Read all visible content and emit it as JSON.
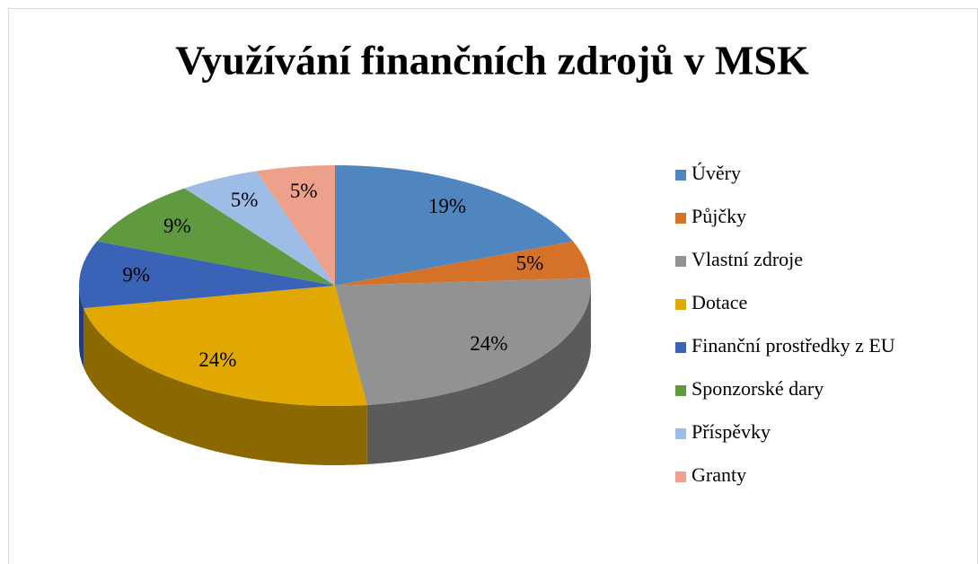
{
  "chart_data": {
    "type": "pie",
    "title": "Využívání finančních zdrojů v MSK",
    "categories": [
      "Úvěry",
      "Půjčky",
      "Vlastní zdroje",
      "Dotace",
      "Finanční prostředky z EU",
      "Sponzorské dary",
      "Příspěvky",
      "Granty"
    ],
    "values": [
      19,
      5,
      24,
      24,
      9,
      9,
      5,
      5
    ],
    "value_labels": [
      "19%",
      "5%",
      "24%",
      "24%",
      "9%",
      "9%",
      "5%",
      "5%"
    ],
    "colors": [
      "#4f86c0",
      "#d5722a",
      "#929292",
      "#e0a800",
      "#3a63b8",
      "#5f9a3f",
      "#9dbde6",
      "#eea18a"
    ],
    "legend": "right"
  }
}
